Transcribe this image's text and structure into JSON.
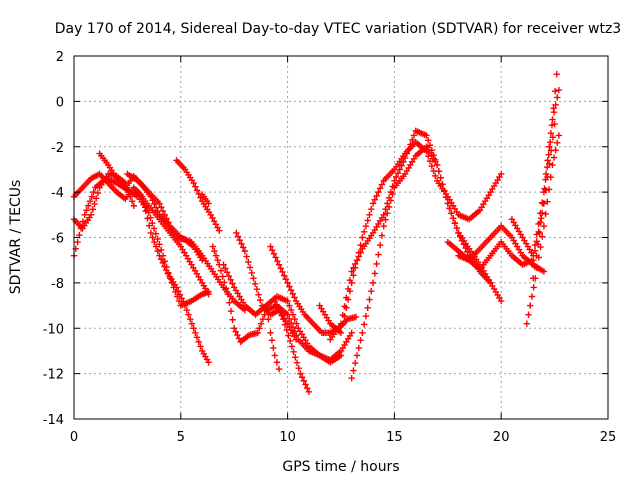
{
  "chart_data": {
    "type": "scatter",
    "title": "Day 170 of 2014, Sidereal Day-to-day VTEC variation (SDTVAR) for receiver wtz3",
    "xlabel": "GPS time / hours",
    "ylabel": "SDTVAR / TECUs",
    "xlim": [
      0,
      25
    ],
    "ylim": [
      -14,
      2
    ],
    "xticks": [
      0,
      5,
      10,
      15,
      20,
      25
    ],
    "yticks": [
      2,
      0,
      -2,
      -4,
      -6,
      -8,
      -10,
      -12,
      -14
    ],
    "xtick_labels": [
      "0",
      "5",
      "10",
      "15",
      "20",
      "25"
    ],
    "ytick_labels": [
      "2",
      "0",
      "-2",
      "-4",
      "-6",
      "-8",
      "-10",
      "-12",
      "-14"
    ],
    "grid": true,
    "legend": "none",
    "marker": "plus",
    "color": "#ff0000",
    "series": [
      {
        "x": [
          0.0,
          0.5,
          1.0,
          1.5,
          2.0,
          2.5,
          3.0,
          3.5,
          4.0,
          4.5,
          5.0,
          5.5,
          6.0,
          6.3
        ],
        "y": [
          -6.8,
          -5.0,
          -3.8,
          -3.4,
          -3.6,
          -3.9,
          -4.2,
          -4.9,
          -6.3,
          -7.8,
          -9.0,
          -8.8,
          -8.5,
          -8.4
        ]
      },
      {
        "x": [
          0.0,
          0.4,
          0.8,
          1.2,
          1.6,
          2.0,
          2.4,
          2.8,
          3.2,
          3.6,
          4.0,
          4.4,
          4.8,
          5.2,
          5.6,
          6.0,
          6.3
        ],
        "y": [
          -4.2,
          -3.8,
          -3.4,
          -3.2,
          -3.6,
          -4.0,
          -4.3,
          -3.8,
          -4.2,
          -5.8,
          -6.8,
          -7.6,
          -8.2,
          -9.0,
          -10.0,
          -11.0,
          -11.5
        ]
      },
      {
        "x": [
          0.0,
          0.4,
          0.8,
          1.2,
          1.6,
          2.0,
          2.4,
          2.8
        ],
        "y": [
          -5.2,
          -5.6,
          -5.0,
          -3.8,
          -3.2,
          -3.3,
          -3.6,
          -4.6
        ]
      },
      {
        "x": [
          1.2,
          1.6,
          2.0,
          2.4,
          2.8,
          3.2,
          3.6,
          4.0,
          4.4,
          4.8,
          5.2,
          5.6,
          6.0
        ],
        "y": [
          -2.3,
          -2.8,
          -3.4,
          -3.8,
          -3.3,
          -3.7,
          -4.2,
          -5.0,
          -5.4,
          -6.0,
          -6.1,
          -6.4,
          -7.0
        ]
      },
      {
        "x": [
          2.5,
          3.0,
          3.5,
          4.0,
          4.5,
          5.0,
          5.5,
          6.0,
          6.5,
          7.0,
          7.5,
          8.0
        ],
        "y": [
          -3.2,
          -3.5,
          -4.0,
          -4.5,
          -5.5,
          -6.0,
          -6.2,
          -6.8,
          -7.5,
          -8.2,
          -8.8,
          -9.2
        ]
      },
      {
        "x": [
          3.0,
          3.5,
          4.0,
          4.5,
          5.0,
          5.5,
          6.0,
          6.3
        ],
        "y": [
          -4.0,
          -4.6,
          -5.2,
          -5.8,
          -6.4,
          -7.2,
          -8.0,
          -8.5
        ]
      },
      {
        "x": [
          4.8,
          5.2,
          5.6,
          6.0,
          6.4,
          6.8
        ],
        "y": [
          -2.6,
          -3.0,
          -3.6,
          -4.4,
          -5.0,
          -5.7
        ]
      },
      {
        "x": [
          6.0,
          6.3
        ],
        "y": [
          -4.1,
          -4.5
        ]
      },
      {
        "x": [
          6.5,
          6.8,
          7.2,
          7.5,
          7.8,
          8.2,
          8.6,
          9.0,
          9.5,
          10.0,
          10.5,
          11.0,
          11.5,
          12.0,
          12.5
        ],
        "y": [
          -6.4,
          -7.2,
          -8.5,
          -10.0,
          -10.6,
          -10.3,
          -10.2,
          -9.2,
          -9.0,
          -9.4,
          -10.5,
          -11.0,
          -11.2,
          -11.5,
          -11.2
        ]
      },
      {
        "x": [
          7.0,
          7.5,
          8.0,
          8.5,
          9.0,
          9.5,
          10.0,
          10.5,
          11.0,
          11.5,
          12.0,
          12.5,
          13.0
        ],
        "y": [
          -7.2,
          -8.2,
          -9.0,
          -9.4,
          -9.0,
          -8.6,
          -8.8,
          -10.0,
          -10.8,
          -11.2,
          -11.4,
          -11.0,
          -10.2
        ]
      },
      {
        "x": [
          7.6,
          8.0,
          8.4,
          8.8,
          9.2,
          9.6,
          10.0,
          10.4
        ],
        "y": [
          -5.8,
          -6.6,
          -7.8,
          -9.0,
          -9.4,
          -9.2,
          -9.8,
          -10.5
        ]
      },
      {
        "x": [
          9.0,
          9.2,
          9.4,
          9.6
        ],
        "y": [
          -9.0,
          -10.2,
          -11.2,
          -11.8
        ]
      },
      {
        "x": [
          9.2,
          9.6,
          10.0,
          10.4,
          10.8,
          11.2,
          11.6,
          12.0,
          12.4,
          12.8,
          13.2
        ],
        "y": [
          -6.4,
          -7.2,
          -8.0,
          -8.8,
          -9.4,
          -9.8,
          -10.2,
          -10.2,
          -10.0,
          -9.6,
          -9.5
        ]
      },
      {
        "x": [
          9.4,
          9.8,
          10.2,
          10.6,
          11.0
        ],
        "y": [
          -8.8,
          -9.6,
          -10.8,
          -12.0,
          -12.8
        ]
      },
      {
        "x": [
          11.5,
          12.0,
          12.5,
          13.0,
          13.5,
          14.0,
          14.5,
          15.0,
          15.5,
          16.0,
          16.5,
          17.0,
          17.5,
          18.0,
          18.5,
          19.0,
          19.5,
          20.0
        ],
        "y": [
          -9.0,
          -9.8,
          -10.2,
          -8.0,
          -6.0,
          -4.5,
          -3.5,
          -3.0,
          -2.3,
          -1.8,
          -2.2,
          -3.5,
          -4.2,
          -5.0,
          -5.2,
          -4.8,
          -4.0,
          -3.2
        ]
      },
      {
        "x": [
          12.0,
          12.5,
          13.0,
          13.5,
          14.0,
          14.5,
          15.0,
          15.5,
          16.0,
          16.5,
          17.0,
          17.5,
          18.0,
          18.5,
          19.0,
          19.5
        ],
        "y": [
          -10.5,
          -9.8,
          -7.5,
          -6.5,
          -5.8,
          -5.0,
          -3.5,
          -2.5,
          -1.3,
          -1.5,
          -2.8,
          -4.5,
          -5.8,
          -6.8,
          -7.5,
          -8.0
        ]
      },
      {
        "x": [
          13.0,
          13.5,
          14.0,
          14.5,
          15.0,
          15.5,
          16.0,
          16.5,
          17.0,
          17.5,
          18.0,
          18.5,
          19.0,
          19.5,
          20.0
        ],
        "y": [
          -12.2,
          -10.2,
          -8.0,
          -5.5,
          -3.8,
          -3.2,
          -2.4,
          -2.0,
          -2.8,
          -4.5,
          -5.8,
          -6.5,
          -7.2,
          -8.0,
          -8.8
        ]
      },
      {
        "x": [
          17.5,
          18.0,
          18.5,
          19.0,
          19.5,
          20.0,
          20.5,
          21.0,
          21.5,
          22.0
        ],
        "y": [
          -6.2,
          -6.6,
          -7.0,
          -6.5,
          -6.0,
          -5.5,
          -6.0,
          -6.8,
          -7.2,
          -7.5
        ]
      },
      {
        "x": [
          18.0,
          18.5,
          19.0,
          19.5,
          20.0,
          20.5,
          21.0,
          21.5,
          22.0,
          22.5
        ],
        "y": [
          -6.8,
          -7.0,
          -7.4,
          -6.8,
          -6.2,
          -6.8,
          -7.2,
          -7.0,
          -4.5,
          -1.0
        ]
      },
      {
        "x": [
          20.5,
          21.0,
          21.5,
          22.0,
          22.3,
          22.6
        ],
        "y": [
          -5.2,
          -6.0,
          -6.8,
          -4.0,
          -1.8,
          1.2
        ]
      },
      {
        "x": [
          21.2,
          21.6,
          22.0,
          22.4,
          22.7
        ],
        "y": [
          -9.8,
          -7.8,
          -5.5,
          -2.8,
          -1.5
        ]
      },
      {
        "x": [
          21.5,
          21.8,
          22.1,
          22.4,
          22.7
        ],
        "y": [
          -7.8,
          -5.8,
          -3.2,
          -0.8,
          0.5
        ]
      }
    ]
  }
}
